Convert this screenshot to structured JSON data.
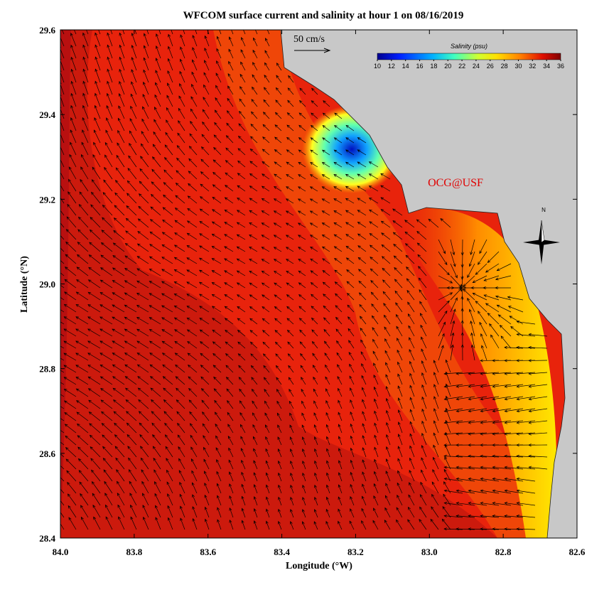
{
  "map": {
    "title": "WFCOM surface current and salinity at hour 1 on 08/16/2019",
    "xlabel": "Longitude (°W)",
    "ylabel": "Latitude (°N)",
    "xlim": [
      84.0,
      82.6
    ],
    "ylim": [
      28.4,
      29.6
    ],
    "xticks": [
      {
        "value": 84,
        "label": "84.0"
      },
      83.8,
      83.6,
      83.4,
      83.2,
      {
        "value": 83,
        "label": "83.0"
      },
      82.8,
      82.6
    ],
    "yticks": [
      28.4,
      28.6,
      28.8,
      {
        "value": 29,
        "label": "29.0"
      },
      29.2,
      29.4,
      29.6
    ],
    "colorbar": {
      "label": "Salinity (psu)",
      "lim": [
        10,
        36
      ],
      "ticks": [
        10,
        12,
        14,
        16,
        18,
        20,
        22,
        24,
        26,
        28,
        30,
        32,
        34,
        36
      ]
    },
    "scale_label": "50 cm/s",
    "watermark": "OCG@USF",
    "compass": "N"
  }
}
